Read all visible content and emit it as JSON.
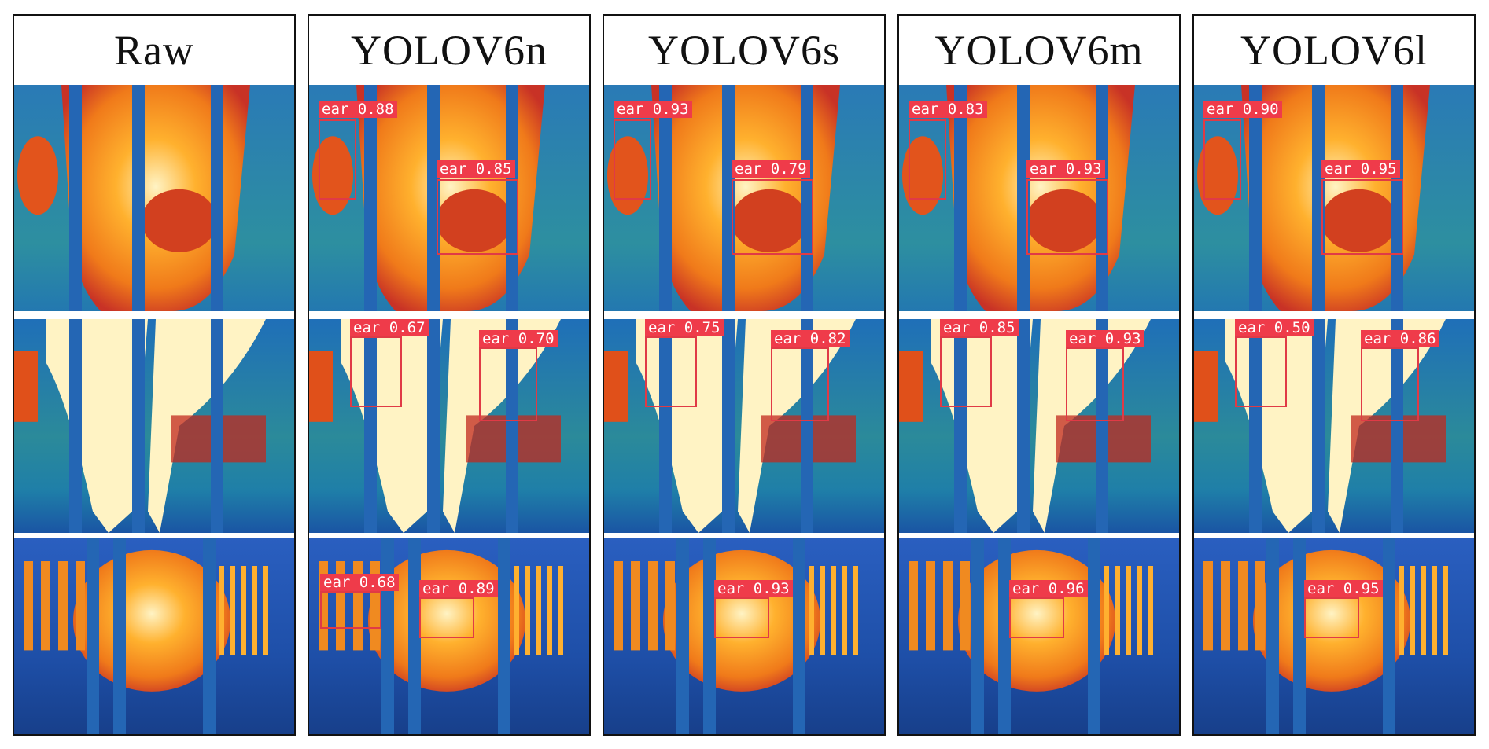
{
  "columns": [
    {
      "title": "Raw",
      "rows": [
        {
          "detections": []
        },
        {
          "detections": []
        },
        {
          "detections": []
        }
      ]
    },
    {
      "title": "YOLOV6n",
      "rows": [
        {
          "detections": [
            {
              "label": "ear 0.88"
            },
            {
              "label": "ear 0.85"
            }
          ]
        },
        {
          "detections": [
            {
              "label": "ear 0.67"
            },
            {
              "label": "ear 0.70"
            }
          ]
        },
        {
          "detections": [
            {
              "label": "ear 0.68"
            },
            {
              "label": "ear 0.89"
            }
          ]
        }
      ]
    },
    {
      "title": "YOLOV6s",
      "rows": [
        {
          "detections": [
            {
              "label": "ear 0.93"
            },
            {
              "label": "ear 0.79"
            }
          ]
        },
        {
          "detections": [
            {
              "label": "ear 0.75"
            },
            {
              "label": "ear 0.82"
            }
          ]
        },
        {
          "detections": [
            {
              "label": "ear 0.93"
            }
          ]
        }
      ]
    },
    {
      "title": "YOLOV6m",
      "rows": [
        {
          "detections": [
            {
              "label": "ear 0.83"
            },
            {
              "label": "ear 0.93"
            }
          ]
        },
        {
          "detections": [
            {
              "label": "ear 0.85"
            },
            {
              "label": "ear 0.93"
            }
          ]
        },
        {
          "detections": [
            {
              "label": "ear 0.96"
            }
          ]
        }
      ]
    },
    {
      "title": "YOLOV6l",
      "rows": [
        {
          "detections": [
            {
              "label": "ear 0.90"
            },
            {
              "label": "ear 0.95"
            }
          ]
        },
        {
          "detections": [
            {
              "label": "ear 0.50"
            },
            {
              "label": "ear 0.86"
            }
          ]
        },
        {
          "detections": [
            {
              "label": "ear 0.95"
            }
          ]
        }
      ]
    }
  ],
  "colors": {
    "box": "#e03a46",
    "label_bg": "#ef3b4a",
    "cold": "#1b5fb4",
    "warm": "#f07a1a",
    "hot": "#fff3c4"
  }
}
